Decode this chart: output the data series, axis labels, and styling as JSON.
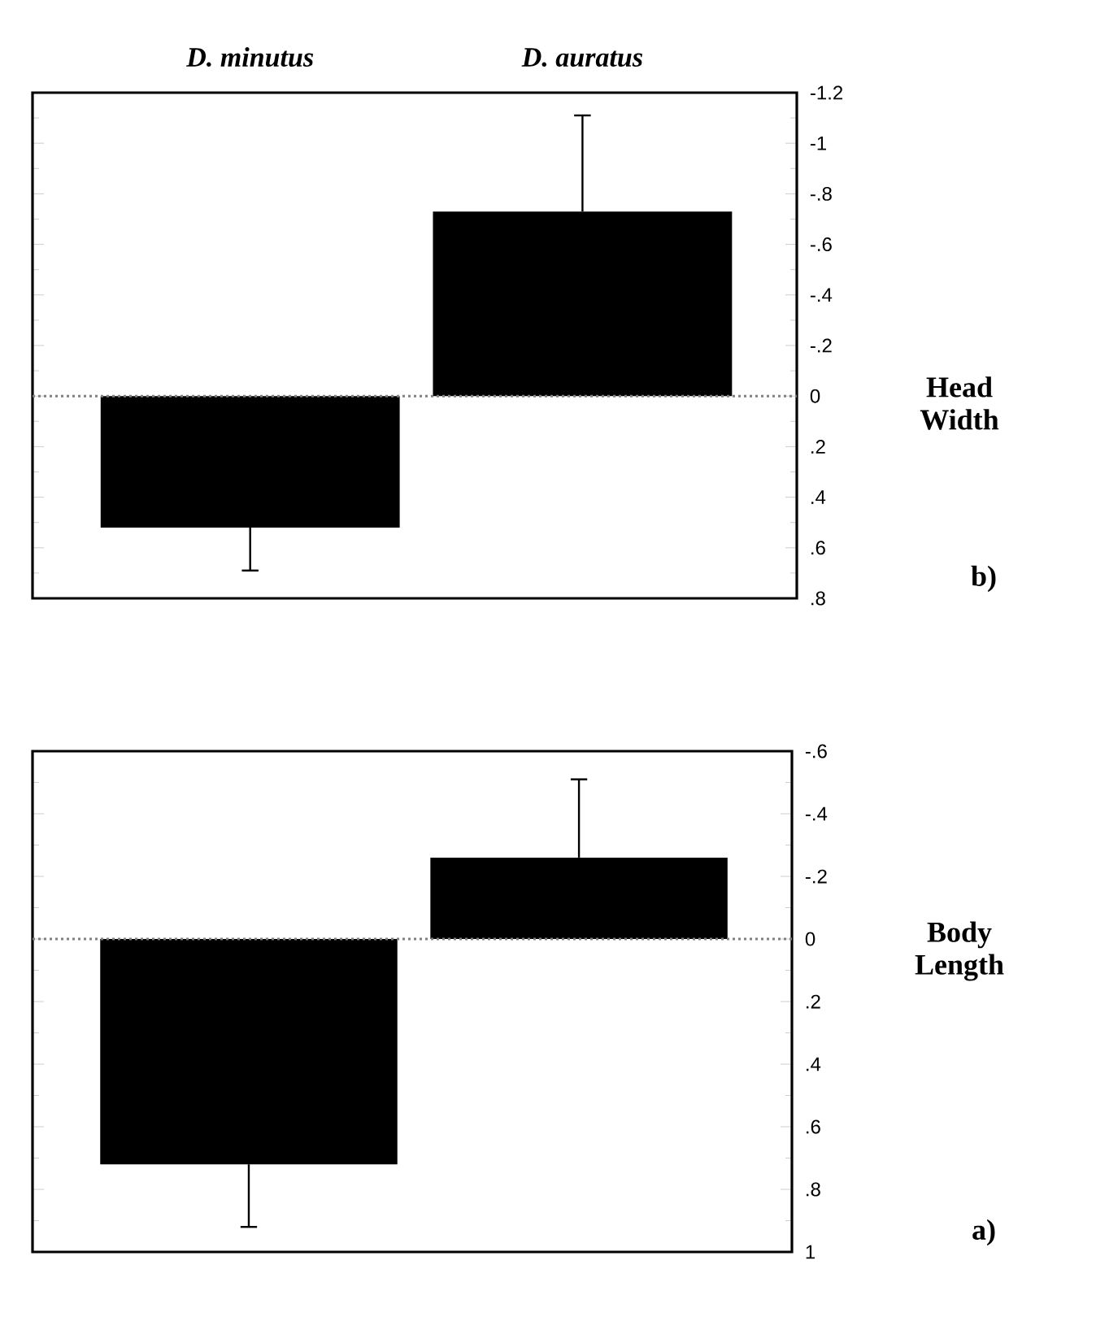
{
  "chart_data": [
    {
      "type": "bar",
      "annotations": [
        "b)"
      ],
      "ylabel": "Head Width",
      "categories": [
        "D. minutus",
        "D. auratus"
      ],
      "values": [
        0.52,
        -0.73
      ],
      "errors": [
        [
          0.52,
          0.69
        ],
        [
          -1.11,
          -0.73
        ]
      ],
      "color": "#000000",
      "ylim": [
        0.8,
        -1.2
      ],
      "yticks": [
        {
          "value": -1.2,
          "label": "-1.2"
        },
        -1,
        {
          "value": -0.8,
          "label": "-.8"
        },
        {
          "value": -0.6,
          "label": "-.6"
        },
        {
          "value": -0.4,
          "label": "-.4"
        },
        {
          "value": -0.2,
          "label": "-.2"
        },
        0,
        {
          "value": 0.2,
          "label": ".2"
        },
        {
          "value": 0.4,
          "label": ".4"
        },
        {
          "value": 0.6,
          "label": ".6"
        },
        {
          "value": 0.8,
          "label": ".8"
        }
      ],
      "ref_lines": [
        {
          "axis": "y",
          "value": 0,
          "color": "#808080",
          "line_style": "dotted"
        }
      ]
    },
    {
      "type": "bar",
      "annotations": [
        "a)"
      ],
      "ylabel": "Body Length",
      "categories": [
        null,
        null
      ],
      "values": [
        0.72,
        -0.26
      ],
      "errors": [
        [
          0.72,
          0.92
        ],
        [
          -0.51,
          -0.26
        ]
      ],
      "color": "#000000",
      "ylim": [
        1,
        -0.6
      ],
      "yticks": [
        {
          "value": -0.6,
          "label": "-.6"
        },
        {
          "value": -0.4,
          "label": "-.4"
        },
        {
          "value": -0.2,
          "label": "-.2"
        },
        0,
        {
          "value": 0.2,
          "label": ".2"
        },
        {
          "value": 0.4,
          "label": ".4"
        },
        {
          "value": 0.6,
          "label": ".6"
        },
        {
          "value": 0.8,
          "label": ".8"
        },
        1
      ],
      "ref_lines": [
        {
          "axis": "y",
          "value": 0,
          "color": "#808080",
          "line_style": "dotted"
        }
      ]
    }
  ]
}
